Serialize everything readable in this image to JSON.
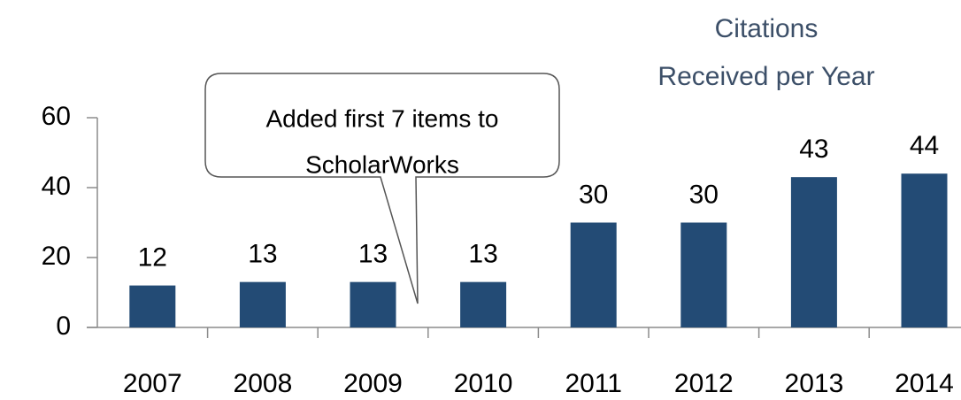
{
  "chart_data": {
    "type": "bar",
    "title": [
      "Citations",
      "Received per Year"
    ],
    "annotation": [
      "Added first 7 items to",
      "ScholarWorks"
    ],
    "categories": [
      "2007",
      "2008",
      "2009",
      "2010",
      "2011",
      "2012",
      "2013",
      "2014"
    ],
    "values": [
      12,
      13,
      13,
      13,
      30,
      30,
      43,
      44
    ],
    "color": "#234b75",
    "ylim": [
      0,
      60
    ],
    "yticks": [
      0,
      20,
      40,
      60
    ],
    "grid": false
  }
}
